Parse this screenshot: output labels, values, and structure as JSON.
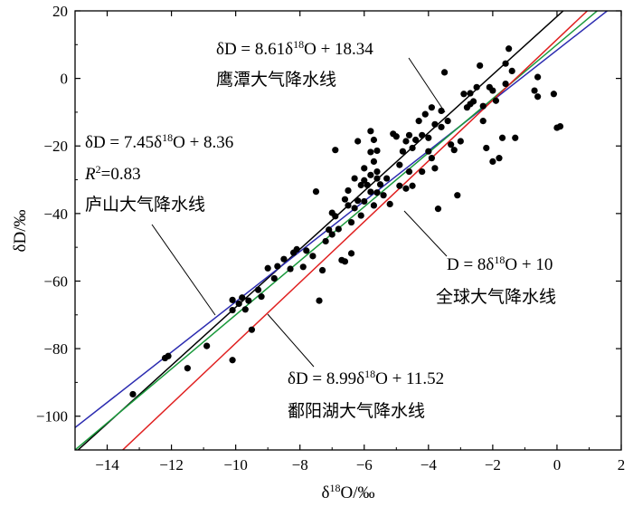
{
  "chart_data": {
    "type": "scatter",
    "title": "",
    "xlabel": "δ18O/‰",
    "ylabel": "δD/‰",
    "xlim": [
      -15,
      2
    ],
    "ylim": [
      -110,
      20
    ],
    "x_ticks": [
      -14,
      -12,
      -10,
      -8,
      -6,
      -4,
      -2,
      0,
      2
    ],
    "y_ticks": [
      -100,
      -80,
      -60,
      -40,
      -20,
      0,
      20
    ],
    "x_tick_labels": [
      "−14",
      "−12",
      "−10",
      "−8",
      "−6",
      "−4",
      "−2",
      "0",
      "2"
    ],
    "y_tick_labels": [
      "−100",
      "−80",
      "−60",
      "−40",
      "−20",
      "0",
      "20"
    ],
    "grid": false,
    "series": [
      {
        "type": "scatter",
        "color": "#000000",
        "points": [
          [
            -13.2,
            -93.5
          ],
          [
            -12.2,
            -82.8
          ],
          [
            -12.1,
            -82.2
          ],
          [
            -11.5,
            -85.8
          ],
          [
            -10.9,
            -79.2
          ],
          [
            -10.1,
            -83.4
          ],
          [
            -10.1,
            -65.6
          ],
          [
            -10.1,
            -68.6
          ],
          [
            -9.9,
            -66.7
          ],
          [
            -9.8,
            -64.9
          ],
          [
            -9.7,
            -68.4
          ],
          [
            -9.6,
            -65.8
          ],
          [
            -9.5,
            -74.4
          ],
          [
            -9.3,
            -62.6
          ],
          [
            -9.2,
            -64.6
          ],
          [
            -9.0,
            -56.2
          ],
          [
            -8.8,
            -59.2
          ],
          [
            -8.7,
            -55.6
          ],
          [
            -8.5,
            -53.5
          ],
          [
            -8.3,
            -56.4
          ],
          [
            -8.2,
            -51.6
          ],
          [
            -8.1,
            -50.6
          ],
          [
            -7.9,
            -55.8
          ],
          [
            -7.8,
            -51.0
          ],
          [
            -7.6,
            -52.6
          ],
          [
            -7.5,
            -33.5
          ],
          [
            -7.4,
            -65.8
          ],
          [
            -7.3,
            -56.8
          ],
          [
            -7.2,
            -48.2
          ],
          [
            -7.1,
            -44.8
          ],
          [
            -7.0,
            -46.2
          ],
          [
            -7.0,
            -39.8
          ],
          [
            -6.9,
            -40.8
          ],
          [
            -6.9,
            -21.2
          ],
          [
            -6.8,
            -44.6
          ],
          [
            -6.7,
            -53.8
          ],
          [
            -6.6,
            -54.2
          ],
          [
            -6.6,
            -35.8
          ],
          [
            -6.5,
            -37.6
          ],
          [
            -6.5,
            -33.2
          ],
          [
            -6.4,
            -51.8
          ],
          [
            -6.4,
            -42.6
          ],
          [
            -6.3,
            -38.4
          ],
          [
            -6.3,
            -29.6
          ],
          [
            -6.2,
            -36.2
          ],
          [
            -6.2,
            -18.6
          ],
          [
            -6.1,
            -40.6
          ],
          [
            -6.1,
            -31.6
          ],
          [
            -6.0,
            -36.4
          ],
          [
            -6.0,
            -30.2
          ],
          [
            -5.9,
            -31.6
          ],
          [
            -5.8,
            -33.6
          ],
          [
            -5.8,
            -28.6
          ],
          [
            -5.8,
            -21.8
          ],
          [
            -5.8,
            -15.6
          ],
          [
            -5.7,
            -37.6
          ],
          [
            -5.7,
            -24.6
          ],
          [
            -5.7,
            -18.2
          ],
          [
            -5.6,
            -33.8
          ],
          [
            -5.6,
            -29.6
          ],
          [
            -5.6,
            -27.6
          ],
          [
            -5.6,
            -21.4
          ],
          [
            -5.5,
            -31.4
          ],
          [
            -5.4,
            -34.6
          ],
          [
            -5.3,
            -29.6
          ],
          [
            -5.2,
            -37.2
          ],
          [
            -5.1,
            -16.4
          ],
          [
            -4.9,
            -31.8
          ],
          [
            -4.9,
            -25.6
          ],
          [
            -4.8,
            -21.6
          ],
          [
            -4.7,
            -32.6
          ],
          [
            -4.7,
            -18.6
          ],
          [
            -4.6,
            -16.8
          ],
          [
            -4.6,
            -27.6
          ],
          [
            -4.5,
            -31.8
          ],
          [
            -4.5,
            -20.6
          ],
          [
            -4.4,
            -18.2
          ],
          [
            -4.3,
            -12.6
          ],
          [
            -4.2,
            -16.8
          ],
          [
            -4.2,
            -27.6
          ],
          [
            -4.1,
            -10.6
          ],
          [
            -4.0,
            -17.6
          ],
          [
            -4.0,
            -21.6
          ],
          [
            -3.9,
            -8.6
          ],
          [
            -3.9,
            -23.6
          ],
          [
            -3.8,
            -13.6
          ],
          [
            -3.8,
            -26.6
          ],
          [
            -3.7,
            -38.6
          ],
          [
            -3.6,
            -14.4
          ],
          [
            -3.6,
            -9.6
          ],
          [
            -3.5,
            1.8
          ],
          [
            -3.4,
            -12.6
          ],
          [
            -3.2,
            -21.2
          ],
          [
            -3.1,
            -34.6
          ],
          [
            -3.0,
            -18.6
          ],
          [
            -2.8,
            -8.6
          ],
          [
            -2.7,
            -4.4
          ],
          [
            -2.6,
            -6.8
          ],
          [
            -2.5,
            -2.6
          ],
          [
            -2.4,
            3.8
          ],
          [
            -2.3,
            -8.2
          ],
          [
            -2.3,
            -12.6
          ],
          [
            -2.2,
            -20.6
          ],
          [
            -2.1,
            -2.6
          ],
          [
            -2.0,
            -3.6
          ],
          [
            -2.0,
            -24.6
          ],
          [
            -1.9,
            -6.6
          ],
          [
            -1.8,
            -23.6
          ],
          [
            -1.7,
            -17.6
          ],
          [
            -1.6,
            -1.6
          ],
          [
            -1.6,
            4.4
          ],
          [
            -1.5,
            8.8
          ],
          [
            -1.4,
            2.2
          ],
          [
            -1.3,
            -17.6
          ],
          [
            -0.7,
            -3.6
          ],
          [
            -0.6,
            0.4
          ],
          [
            -0.6,
            -5.4
          ],
          [
            -0.1,
            -4.6
          ],
          [
            0.0,
            -14.6
          ],
          [
            0.1,
            -14.2
          ],
          [
            -2.7,
            -7.6
          ],
          [
            -2.9,
            -4.6
          ],
          [
            -3.3,
            -19.6
          ],
          [
            -5.0,
            -17.2
          ],
          [
            -6.0,
            -26.6
          ]
        ]
      },
      {
        "type": "line",
        "name": "鹰潭大气降水线",
        "color": "#000000",
        "slope": 8.61,
        "intercept": 18.34
      },
      {
        "type": "line",
        "name": "庐山大气降水线",
        "color": "#2b2bb0",
        "slope": 7.45,
        "intercept": 8.36
      },
      {
        "type": "line",
        "name": "全球大气降水线",
        "color": "#1a9a3c",
        "slope": 8,
        "intercept": 10
      },
      {
        "type": "line",
        "name": "鄱阳湖大气降水线",
        "color": "#e02020",
        "slope": 8.99,
        "intercept": 11.52
      }
    ],
    "annotations": [
      {
        "lines": [
          "δD = 8.61δ18O + 18.34",
          "鹰潭大气降水线"
        ]
      },
      {
        "lines": [
          "δD = 7.45δ18O + 8.36",
          "R2=0.83",
          "庐山大气降水线"
        ]
      },
      {
        "lines": [
          "D = 8δ18O + 10",
          "全球大气降水线"
        ]
      },
      {
        "lines": [
          "δD = 8.99δ18O + 11.52",
          "鄱阳湖大气降水线"
        ]
      }
    ]
  }
}
